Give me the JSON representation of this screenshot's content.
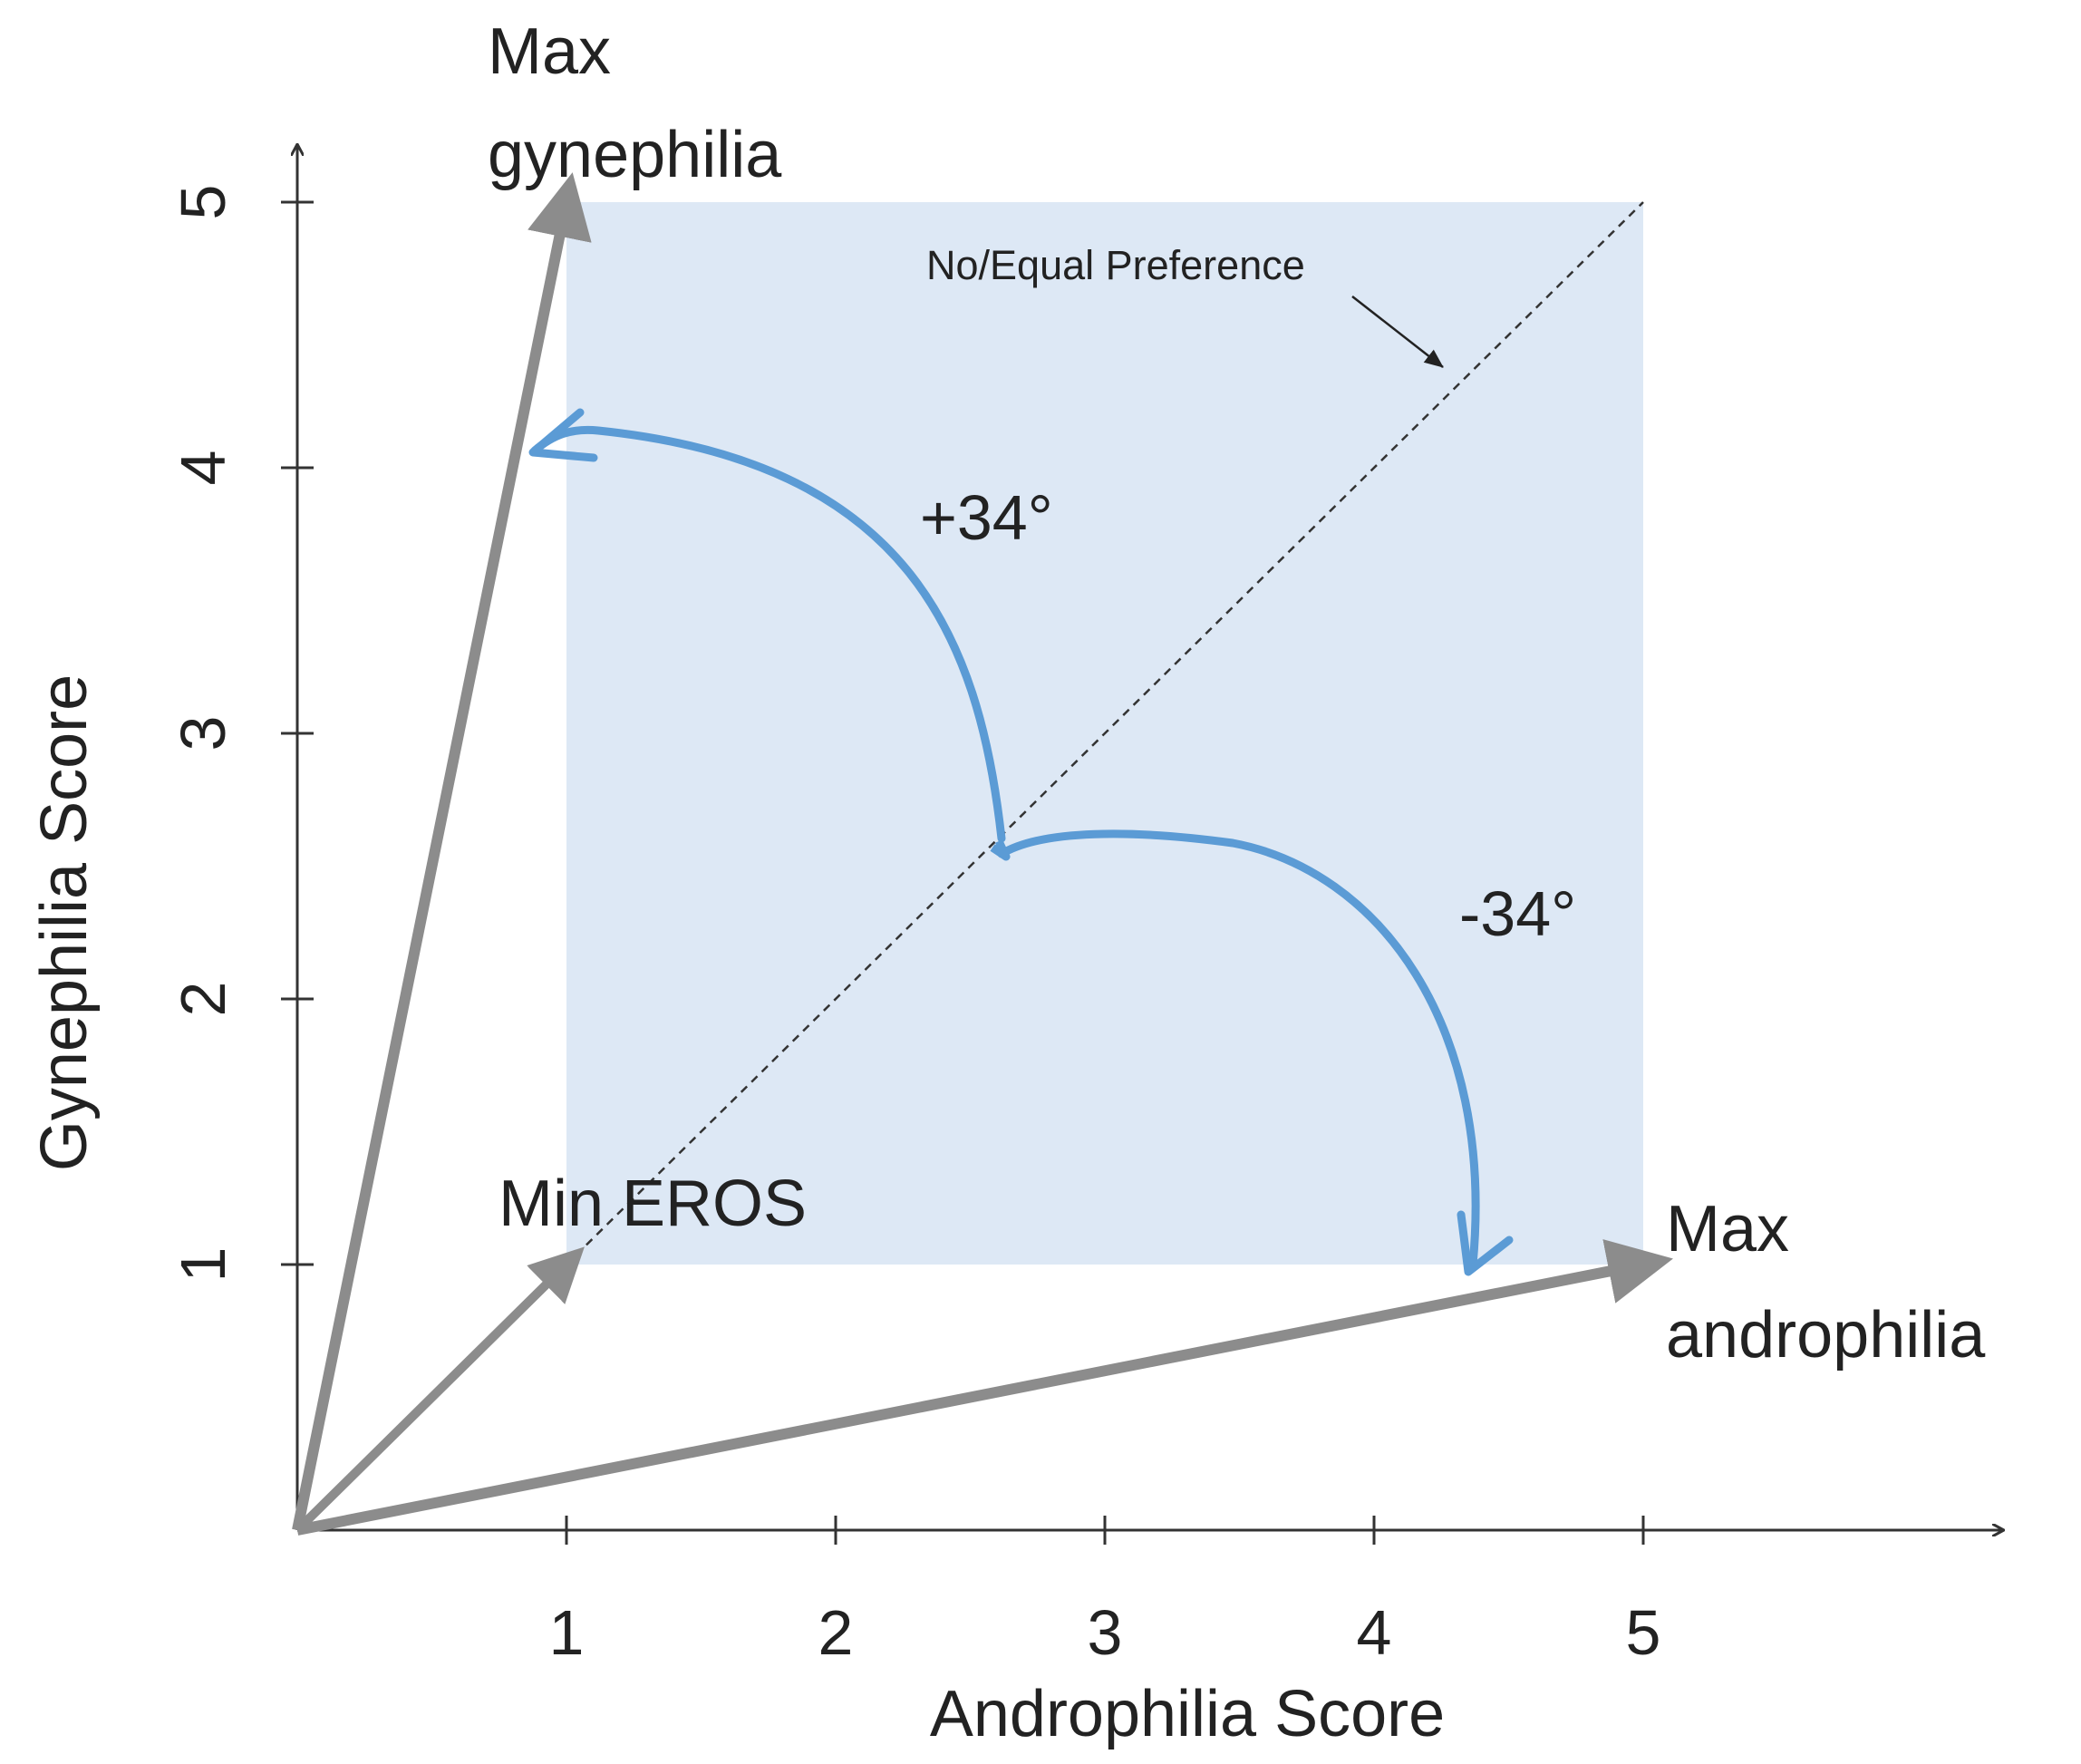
{
  "x_axis": {
    "title": "Androphilia Score",
    "ticks": [
      "1",
      "2",
      "3",
      "4",
      "5"
    ]
  },
  "y_axis": {
    "title": "Gynephilia Score",
    "ticks": [
      "1",
      "2",
      "3",
      "4",
      "5"
    ]
  },
  "region": {
    "x_range": [
      1,
      5
    ],
    "y_range": [
      1,
      5
    ],
    "color": "#dde8f5"
  },
  "vectors": [
    {
      "id": "max-gynephilia",
      "to": [
        1,
        5
      ],
      "label_lines": [
        "Max",
        "gynephilia"
      ],
      "color": "#8c8c8c"
    },
    {
      "id": "min-eros",
      "to": [
        1,
        1
      ],
      "label_lines": [
        "Min EROS"
      ],
      "color": "#8c8c8c"
    },
    {
      "id": "max-androphilia",
      "to": [
        5,
        1
      ],
      "label_lines": [
        "Max",
        "androphilia"
      ],
      "color": "#8c8c8c"
    }
  ],
  "diagonal": {
    "label": "No/Equal Preference"
  },
  "angles": [
    {
      "id": "plus",
      "label": "+34°"
    },
    {
      "id": "minus",
      "label": "-34°"
    }
  ],
  "colors": {
    "arc": "#5b9bd5",
    "axis": "#333333",
    "text": "#222222"
  }
}
